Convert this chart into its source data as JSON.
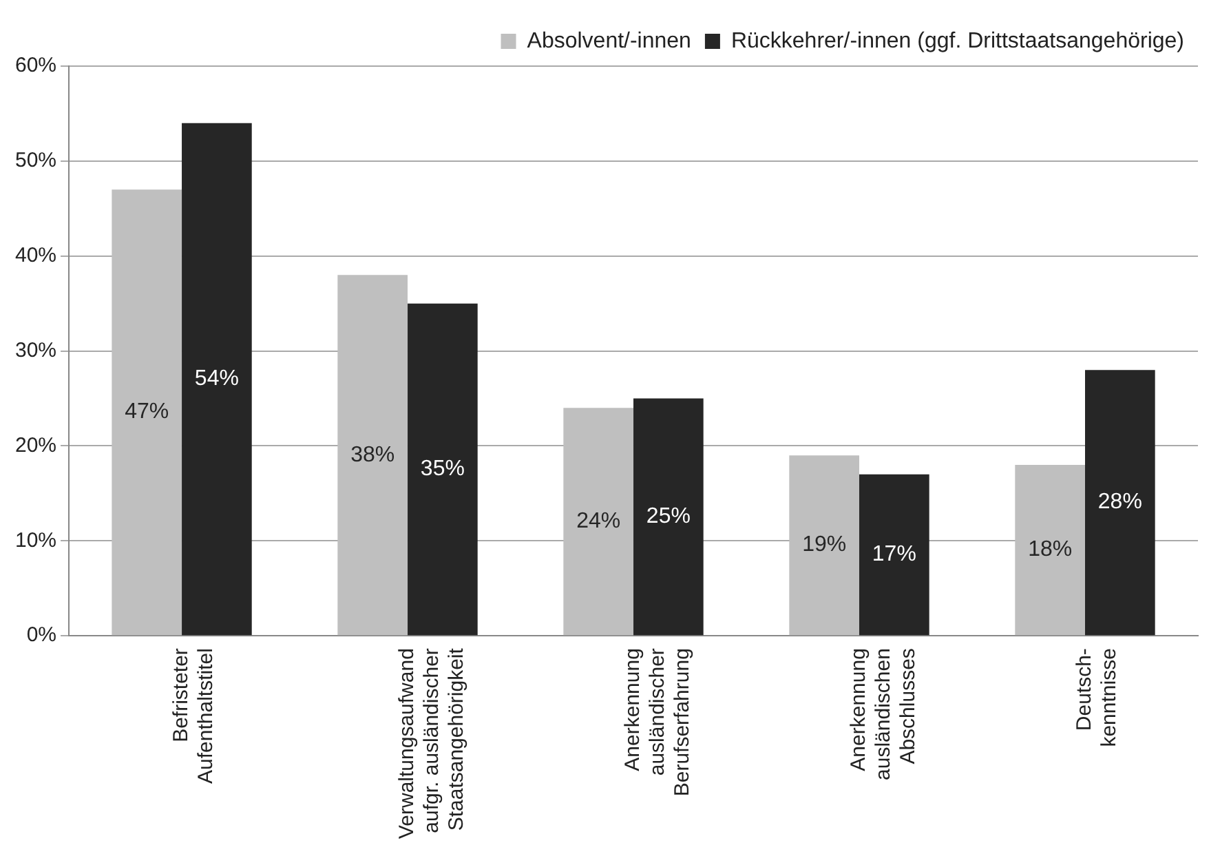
{
  "chart_data": {
    "type": "bar",
    "categories": [
      "Befristeter\nAufenthaltstitel",
      "Verwaltungsaufwand\naufgr. ausländischer\nStaatsangehörigkeit",
      "Anerkennung\nausländischer\nBerufserfahrung",
      "Anerkennung\nausländischen\nAbschlusses",
      "Deutsch-\nkenntnisse"
    ],
    "series": [
      {
        "name": "Absolvent/-innen",
        "color": "#bfbfbf",
        "values": [
          47,
          38,
          24,
          19,
          18
        ],
        "value_labels": [
          "47%",
          "38%",
          "24%",
          "19%",
          "18%"
        ]
      },
      {
        "name": "Rückkehrer/-innen (ggf. Drittstaatsangehörige)",
        "color": "#262626",
        "values": [
          54,
          35,
          25,
          17,
          28
        ],
        "value_labels": [
          "54%",
          "35%",
          "25%",
          "17%",
          "28%"
        ]
      }
    ],
    "ylim": [
      0,
      60
    ],
    "yticks": [
      {
        "value": 0,
        "label": "0%"
      },
      {
        "value": 10,
        "label": "10%"
      },
      {
        "value": 20,
        "label": "20%"
      },
      {
        "value": 30,
        "label": "30%"
      },
      {
        "value": 40,
        "label": "40%"
      },
      {
        "value": 50,
        "label": "50%"
      },
      {
        "value": 60,
        "label": "60%"
      }
    ],
    "grid": "y",
    "legend": "top right"
  }
}
